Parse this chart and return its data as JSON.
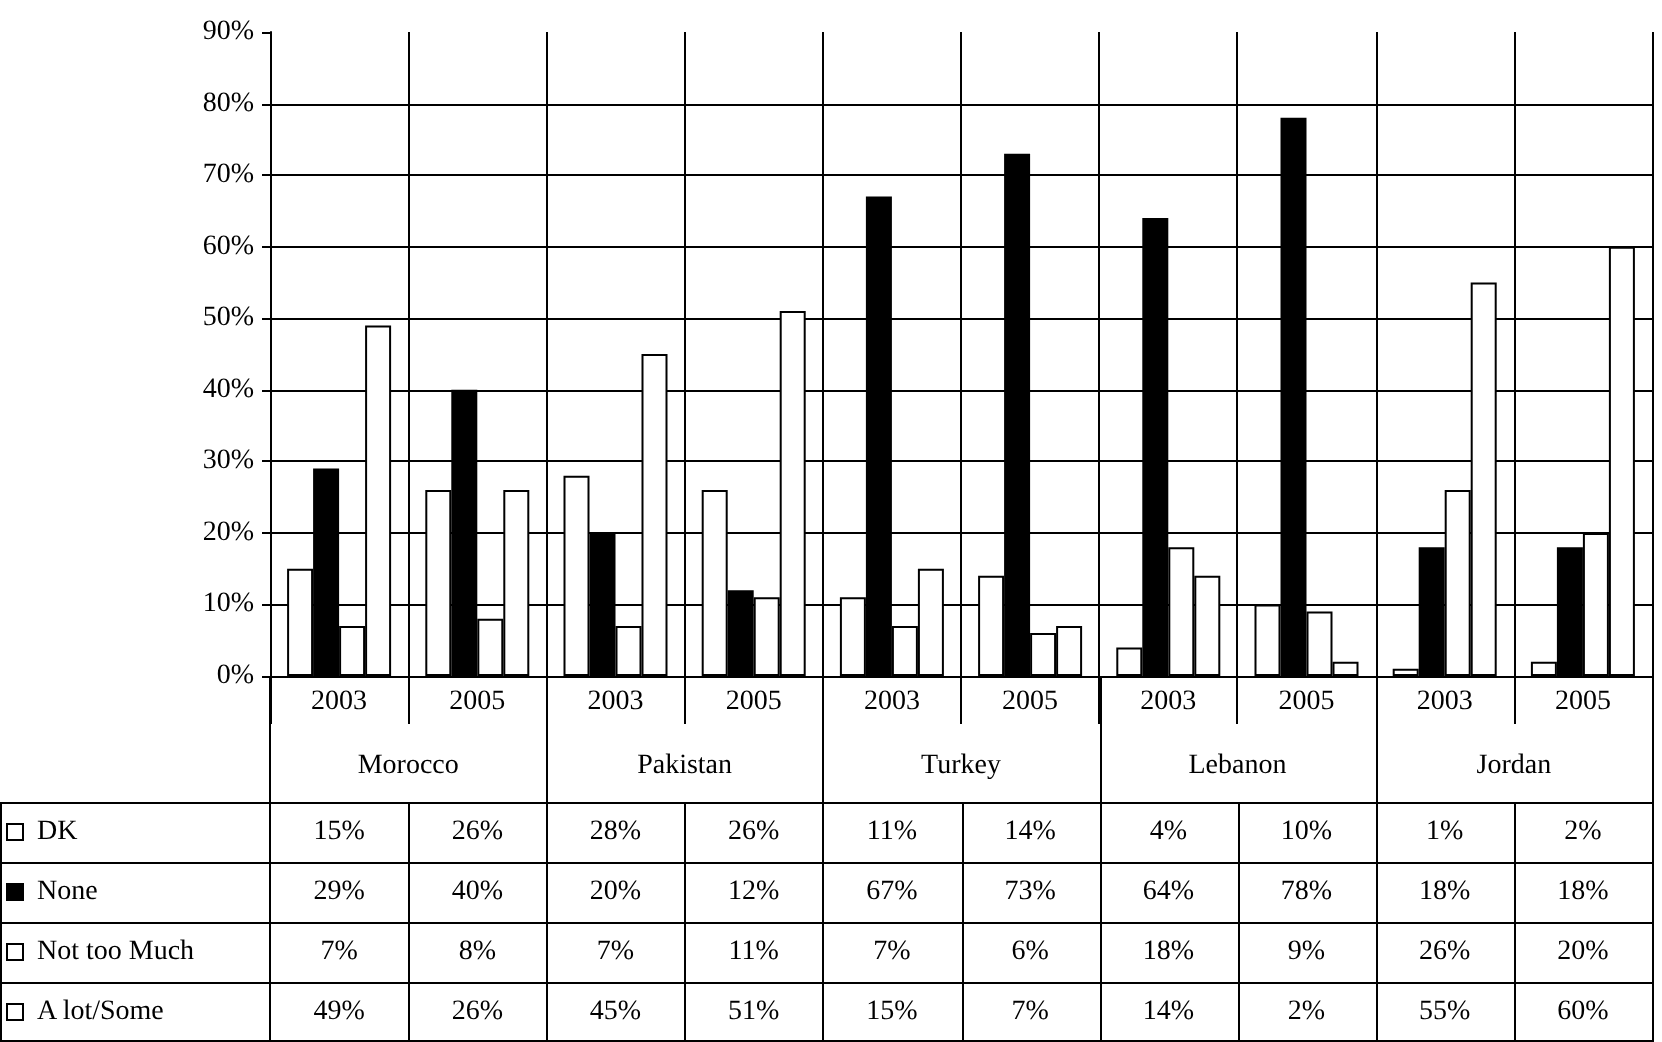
{
  "chart_data": {
    "type": "bar",
    "categories": [
      "2003",
      "2005",
      "2003",
      "2005",
      "2003",
      "2005",
      "2003",
      "2005",
      "2003",
      "2005"
    ],
    "annotations": [
      "Morocco",
      "Pakistan",
      "Turkey",
      "Lebanon",
      "Jordan"
    ],
    "series": [
      {
        "name": "DK",
        "color": "#ffffff",
        "values": [
          15,
          26,
          28,
          26,
          11,
          14,
          4,
          10,
          1,
          2
        ],
        "value_labels": [
          "15%",
          "26%",
          "28%",
          "26%",
          "11%",
          "14%",
          "4%",
          "10%",
          "1%",
          "2%"
        ]
      },
      {
        "name": "None",
        "color": "#000000",
        "values": [
          29,
          40,
          20,
          12,
          67,
          73,
          64,
          78,
          18,
          18
        ],
        "value_labels": [
          "29%",
          "40%",
          "20%",
          "12%",
          "67%",
          "73%",
          "64%",
          "78%",
          "18%",
          "18%"
        ]
      },
      {
        "name": "Not too Much",
        "color": "#ffffff",
        "values": [
          7,
          8,
          7,
          11,
          7,
          6,
          18,
          9,
          26,
          20
        ],
        "value_labels": [
          "7%",
          "8%",
          "7%",
          "11%",
          "7%",
          "6%",
          "18%",
          "9%",
          "26%",
          "20%"
        ]
      },
      {
        "name": "A lot/Some",
        "color": "#ffffff",
        "values": [
          49,
          26,
          45,
          51,
          15,
          7,
          14,
          2,
          55,
          60
        ],
        "value_labels": [
          "49%",
          "26%",
          "45%",
          "51%",
          "15%",
          "7%",
          "14%",
          "2%",
          "55%",
          "60%"
        ]
      }
    ],
    "ylim": [
      0,
      90
    ],
    "yticks": [
      {
        "value": 0,
        "label": "0%"
      },
      {
        "value": 10,
        "label": "10%"
      },
      {
        "value": 20,
        "label": "20%"
      },
      {
        "value": 30,
        "label": "30%"
      },
      {
        "value": 40,
        "label": "40%"
      },
      {
        "value": 50,
        "label": "50%"
      },
      {
        "value": 60,
        "label": "60%"
      },
      {
        "value": 70,
        "label": "70%"
      },
      {
        "value": 80,
        "label": "80%"
      },
      {
        "value": 90,
        "label": "90%"
      }
    ],
    "grid": true,
    "legend": "bottom"
  }
}
